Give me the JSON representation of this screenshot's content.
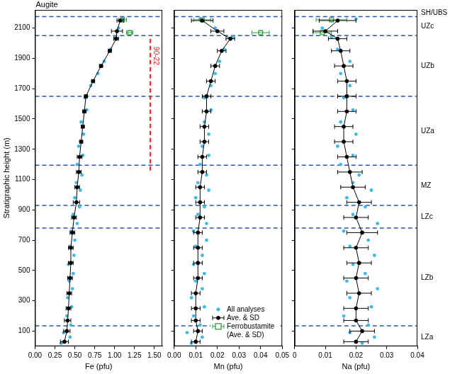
{
  "chart_data": [
    {
      "type": "scatter",
      "title": "Augite",
      "xlabel": "Fe (pfu)",
      "ylabel": "Stratigraphic height (m)",
      "xlim": [
        0,
        1.6
      ],
      "xticks": [
        {
          "value": 0,
          "label": "0.00"
        },
        0.25,
        {
          "value": 0.5,
          "label": "0.50"
        },
        0.75,
        {
          "value": 1,
          "label": "1.00"
        },
        1.25,
        {
          "value": 1.5,
          "label": "1.50"
        }
      ],
      "ylim": [
        0,
        2220
      ],
      "yticks": [
        100,
        300,
        500,
        700,
        900,
        1100,
        1300,
        1500,
        1700,
        1900,
        2100
      ],
      "grid": false,
      "zone_boundaries": [
        135,
        780,
        930,
        1195,
        1650,
        2050,
        2175
      ],
      "reference_line": {
        "label": "90-22",
        "x": 1.45,
        "y": [
          1160,
          2050
        ]
      },
      "series": [
        {
          "name": "All analyses",
          "color": "#3dbbe8",
          "marker": "circle",
          "y": [
            20,
            60,
            90,
            140,
            200,
            260,
            320,
            380,
            430,
            480,
            540,
            600,
            660,
            700,
            760,
            810,
            870,
            920,
            980,
            1030,
            1080,
            1130,
            1200,
            1260,
            1320,
            1400,
            1480,
            1560,
            1640,
            1720,
            1800,
            1880,
            1960,
            2040,
            2100,
            2160
          ],
          "x": [
            0.33,
            0.44,
            0.36,
            0.45,
            0.4,
            0.46,
            0.41,
            0.47,
            0.43,
            0.48,
            0.42,
            0.49,
            0.44,
            0.5,
            0.46,
            0.53,
            0.48,
            0.56,
            0.5,
            0.57,
            0.52,
            0.59,
            0.53,
            0.6,
            0.55,
            0.61,
            0.58,
            0.65,
            0.63,
            0.7,
            0.79,
            0.87,
            0.95,
            1.01,
            1.05,
            1.1
          ]
        },
        {
          "name": "Ave. & SD",
          "color": "#000000",
          "marker": "circle",
          "line_style": "solid",
          "y": [
            30,
            100,
            170,
            250,
            350,
            450,
            550,
            650,
            750,
            850,
            950,
            1050,
            1150,
            1250,
            1350,
            1450,
            1550,
            1650,
            1750,
            1850,
            1950,
            2030,
            2080,
            2150
          ],
          "x": [
            0.37,
            0.4,
            0.41,
            0.42,
            0.43,
            0.44,
            0.45,
            0.45,
            0.47,
            0.49,
            0.52,
            0.53,
            0.55,
            0.56,
            0.58,
            0.6,
            0.62,
            0.64,
            0.73,
            0.83,
            0.94,
            1.02,
            1.03,
            1.07
          ],
          "sd": [
            0.05,
            0.04,
            0.04,
            0.03,
            0.03,
            0.03,
            0.03,
            0.03,
            0.03,
            0.03,
            0.04,
            0.03,
            0.03,
            0.03,
            0.02,
            0.02,
            0.02,
            0.02,
            0.02,
            0.02,
            0.02,
            0.03,
            0.07,
            0.04
          ]
        },
        {
          "name": "Ferrobustamite (Ave. & SD)",
          "color": "#2e9e3e",
          "marker": "square",
          "y": [
            2070,
            2155
          ],
          "x": [
            1.19,
            1.1
          ],
          "sd": [
            0.04,
            0.05
          ]
        }
      ]
    },
    {
      "type": "scatter",
      "xlabel": "Mn (pfu)",
      "xlim": [
        0,
        0.05
      ],
      "xticks": [
        {
          "value": 0,
          "label": "0.00"
        },
        0.01,
        0.02,
        0.03,
        0.04,
        0.05
      ],
      "ylim": [
        0,
        2220
      ],
      "yticks": [
        100,
        300,
        500,
        700,
        900,
        1100,
        1300,
        1500,
        1700,
        1900,
        2100
      ],
      "grid": false,
      "tick_labels": "x",
      "legend": "lower right",
      "zone_boundaries": [
        135,
        780,
        930,
        1195,
        1650,
        2050,
        2175
      ],
      "series": [
        {
          "name": "All analyses",
          "color": "#3dbbe8",
          "marker": "circle",
          "y": [
            20,
            60,
            90,
            140,
            200,
            260,
            320,
            380,
            430,
            480,
            540,
            600,
            660,
            700,
            760,
            810,
            870,
            920,
            980,
            1030,
            1080,
            1130,
            1200,
            1260,
            1320,
            1400,
            1480,
            1560,
            1640,
            1720,
            1800,
            1880,
            1960,
            2040,
            2100,
            2160
          ],
          "x": [
            0.008,
            0.013,
            0.006,
            0.012,
            0.009,
            0.014,
            0.008,
            0.013,
            0.01,
            0.014,
            0.009,
            0.013,
            0.01,
            0.015,
            0.009,
            0.015,
            0.011,
            0.014,
            0.01,
            0.016,
            0.011,
            0.015,
            0.012,
            0.016,
            0.013,
            0.016,
            0.014,
            0.017,
            0.014,
            0.017,
            0.019,
            0.021,
            0.023,
            0.027,
            0.019,
            0.012
          ]
        },
        {
          "name": "Ave. & SD",
          "color": "#000000",
          "marker": "circle",
          "line_style": "solid",
          "y": [
            30,
            100,
            170,
            250,
            350,
            450,
            550,
            650,
            750,
            850,
            950,
            1050,
            1150,
            1250,
            1350,
            1450,
            1550,
            1650,
            1750,
            1850,
            1950,
            2030,
            2080,
            2150
          ],
          "x": [
            0.01,
            0.011,
            0.01,
            0.01,
            0.01,
            0.011,
            0.011,
            0.011,
            0.011,
            0.012,
            0.012,
            0.012,
            0.013,
            0.013,
            0.014,
            0.014,
            0.015,
            0.015,
            0.017,
            0.019,
            0.022,
            0.026,
            0.02,
            0.013
          ],
          "sd": [
            0.002,
            0.002,
            0.002,
            0.002,
            0.002,
            0.002,
            0.002,
            0.002,
            0.002,
            0.002,
            0.002,
            0.002,
            0.002,
            0.002,
            0.002,
            0.002,
            0.002,
            0.002,
            0.002,
            0.002,
            0.002,
            0.002,
            0.003,
            0.005
          ]
        },
        {
          "name": "Ferrobustamite (Ave. & SD)",
          "color": "#2e9e3e",
          "marker": "square",
          "y": [
            2070,
            2155
          ],
          "x": [
            0.04,
            0.013
          ],
          "sd": [
            0.004,
            0.004
          ]
        }
      ]
    },
    {
      "type": "scatter",
      "xlabel": "Na (pfu)",
      "xlim": [
        0,
        0.04
      ],
      "xticks": [
        0,
        0.01,
        0.02,
        0.03,
        0.04
      ],
      "ylim": [
        0,
        2220
      ],
      "yticks": [
        100,
        300,
        500,
        700,
        900,
        1100,
        1300,
        1500,
        1700,
        1900,
        2100
      ],
      "grid": false,
      "tick_labels": "x",
      "zone_boundaries": [
        135,
        780,
        930,
        1195,
        1650,
        2050,
        2175
      ],
      "zone_labels": [
        {
          "text": "SH/UBS",
          "y": 2200
        },
        {
          "text": "UZc",
          "y": 2110
        },
        {
          "text": "UZb",
          "y": 1850
        },
        {
          "text": "UZa",
          "y": 1420
        },
        {
          "text": "MZ",
          "y": 1060
        },
        {
          "text": "LZc",
          "y": 855
        },
        {
          "text": "LZb",
          "y": 450
        },
        {
          "text": "LZa",
          "y": 60
        }
      ],
      "series": [
        {
          "name": "All analyses",
          "color": "#3dbbe8",
          "marker": "circle",
          "y": [
            20,
            60,
            90,
            140,
            200,
            260,
            320,
            380,
            430,
            480,
            540,
            600,
            660,
            700,
            760,
            810,
            870,
            920,
            980,
            1030,
            1080,
            1130,
            1200,
            1260,
            1320,
            1400,
            1480,
            1560,
            1640,
            1720,
            1800,
            1880,
            1960,
            2040,
            2100,
            2160
          ],
          "x": [
            0.022,
            0.026,
            0.018,
            0.024,
            0.016,
            0.025,
            0.018,
            0.027,
            0.017,
            0.023,
            0.019,
            0.026,
            0.018,
            0.024,
            0.016,
            0.027,
            0.019,
            0.023,
            0.017,
            0.025,
            0.019,
            0.021,
            0.015,
            0.019,
            0.014,
            0.02,
            0.015,
            0.019,
            0.016,
            0.018,
            0.015,
            0.018,
            0.014,
            0.012,
            0.009,
            0.02
          ]
        },
        {
          "name": "Ave. & SD",
          "color": "#000000",
          "marker": "circle",
          "line_style": "solid",
          "y": [
            30,
            100,
            170,
            250,
            350,
            450,
            550,
            650,
            750,
            850,
            950,
            1050,
            1150,
            1250,
            1350,
            1450,
            1550,
            1650,
            1750,
            1850,
            1950,
            2030,
            2080,
            2150
          ],
          "x": [
            0.02,
            0.022,
            0.02,
            0.02,
            0.021,
            0.02,
            0.021,
            0.02,
            0.022,
            0.02,
            0.021,
            0.019,
            0.018,
            0.017,
            0.016,
            0.016,
            0.017,
            0.017,
            0.017,
            0.016,
            0.015,
            0.014,
            0.01,
            0.014
          ],
          "sd": [
            0.004,
            0.004,
            0.004,
            0.004,
            0.004,
            0.004,
            0.004,
            0.004,
            0.005,
            0.004,
            0.004,
            0.004,
            0.004,
            0.003,
            0.003,
            0.003,
            0.003,
            0.003,
            0.003,
            0.003,
            0.003,
            0.003,
            0.004,
            0.006
          ]
        },
        {
          "name": "Ferrobustamite (Ave. & SD)",
          "color": "#2e9e3e",
          "marker": "square",
          "y": [
            2070,
            2155
          ],
          "x": [
            0.009,
            0.012
          ],
          "sd": [
            0.003,
            0.005
          ]
        }
      ]
    }
  ]
}
